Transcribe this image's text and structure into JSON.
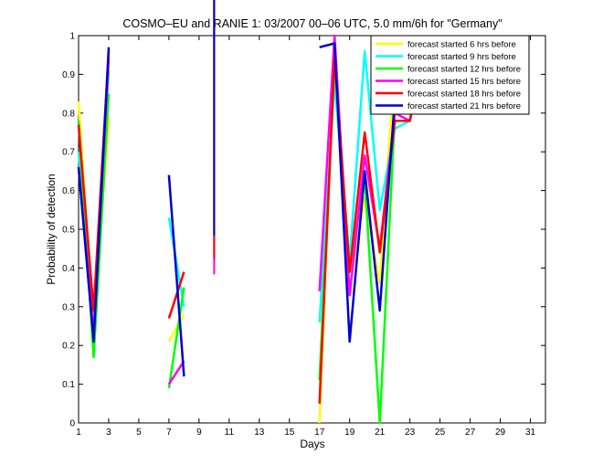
{
  "chart_data": {
    "type": "line",
    "title": "COSMO–EU and RANIE 1: 03/2007 00–06 UTC, 5.0 mm/6h for \"Germany\"",
    "xlabel": "Days",
    "ylabel": "Probability of detection",
    "xlim": [
      1,
      32
    ],
    "ylim": [
      0,
      1
    ],
    "xticks": [
      1,
      3,
      5,
      7,
      9,
      11,
      13,
      15,
      17,
      19,
      21,
      23,
      25,
      27,
      29,
      31
    ],
    "yticks": [
      0,
      0.1,
      0.2,
      0.3,
      0.4,
      0.5,
      0.6,
      0.7,
      0.8,
      0.9,
      1
    ],
    "grid": false,
    "legend_position": "top-right",
    "series": [
      {
        "name": "forecast started 6 hrs before",
        "color": "#ffff00",
        "x": [
          1,
          2,
          3,
          null,
          7,
          8,
          null,
          10,
          null,
          17,
          18,
          19,
          20,
          21,
          22,
          23,
          24
        ],
        "y": [
          0.83,
          0.24,
          0.79,
          null,
          0.21,
          0.28,
          null,
          0.71,
          null,
          0.0,
          0.97,
          0.35,
          0.58,
          0.36,
          0.94,
          0.8,
          0.85
        ]
      },
      {
        "name": "forecast started 9 hrs before",
        "color": "#00ffff",
        "x": [
          1,
          2,
          3,
          null,
          7,
          8,
          null,
          10,
          null,
          17,
          18,
          19,
          20,
          21,
          22,
          23,
          24
        ],
        "y": [
          0.7,
          0.27,
          0.91,
          null,
          0.53,
          0.3,
          null,
          0.63,
          null,
          0.26,
          0.88,
          0.42,
          0.96,
          0.55,
          0.76,
          0.78,
          0.95
        ]
      },
      {
        "name": "forecast started 12 hrs before",
        "color": "#00ff00",
        "x": [
          1,
          2,
          3,
          null,
          7,
          8,
          null,
          10,
          null,
          17,
          18,
          19,
          20,
          21,
          22,
          23,
          24
        ],
        "y": [
          0.78,
          0.17,
          0.85,
          null,
          0.09,
          0.35,
          null,
          0.43,
          null,
          0.11,
          0.93,
          0.4,
          0.63,
          0.0,
          0.8,
          0.8,
          0.96
        ]
      },
      {
        "name": "forecast started 15 hrs before",
        "color": "#ff00ff",
        "x": [
          1,
          2,
          3,
          null,
          7,
          8,
          null,
          10,
          null,
          17,
          18,
          19,
          20,
          21,
          22,
          23,
          24
        ],
        "y": [
          0.66,
          0.23,
          0.94,
          null,
          0.1,
          0.16,
          null,
          0.38,
          null,
          0.34,
          1.0,
          0.33,
          0.69,
          0.45,
          0.8,
          0.78,
          0.99
        ]
      },
      {
        "name": "forecast started 18 hrs before",
        "color": "#ff0000",
        "x": [
          1,
          2,
          3,
          null,
          7,
          8,
          null,
          10,
          null,
          17,
          18,
          19,
          20,
          21,
          22,
          23,
          24
        ],
        "y": [
          0.77,
          0.29,
          0.96,
          null,
          0.27,
          0.39,
          null,
          0.42,
          null,
          0.05,
          0.95,
          0.39,
          0.75,
          0.44,
          0.78,
          0.78,
          0.98
        ]
      },
      {
        "name": "forecast started 21 hrs before",
        "color": "#0000cc",
        "x": [
          1,
          2,
          3,
          null,
          7,
          8,
          null,
          10,
          null,
          17,
          18,
          19,
          20,
          21,
          22,
          23,
          24
        ],
        "y": [
          0.66,
          0.21,
          0.97,
          null,
          0.64,
          0.12,
          null,
          0.48,
          null,
          0.97,
          0.98,
          0.21,
          0.65,
          0.29,
          0.84,
          0.81,
          1.0
        ]
      }
    ]
  }
}
